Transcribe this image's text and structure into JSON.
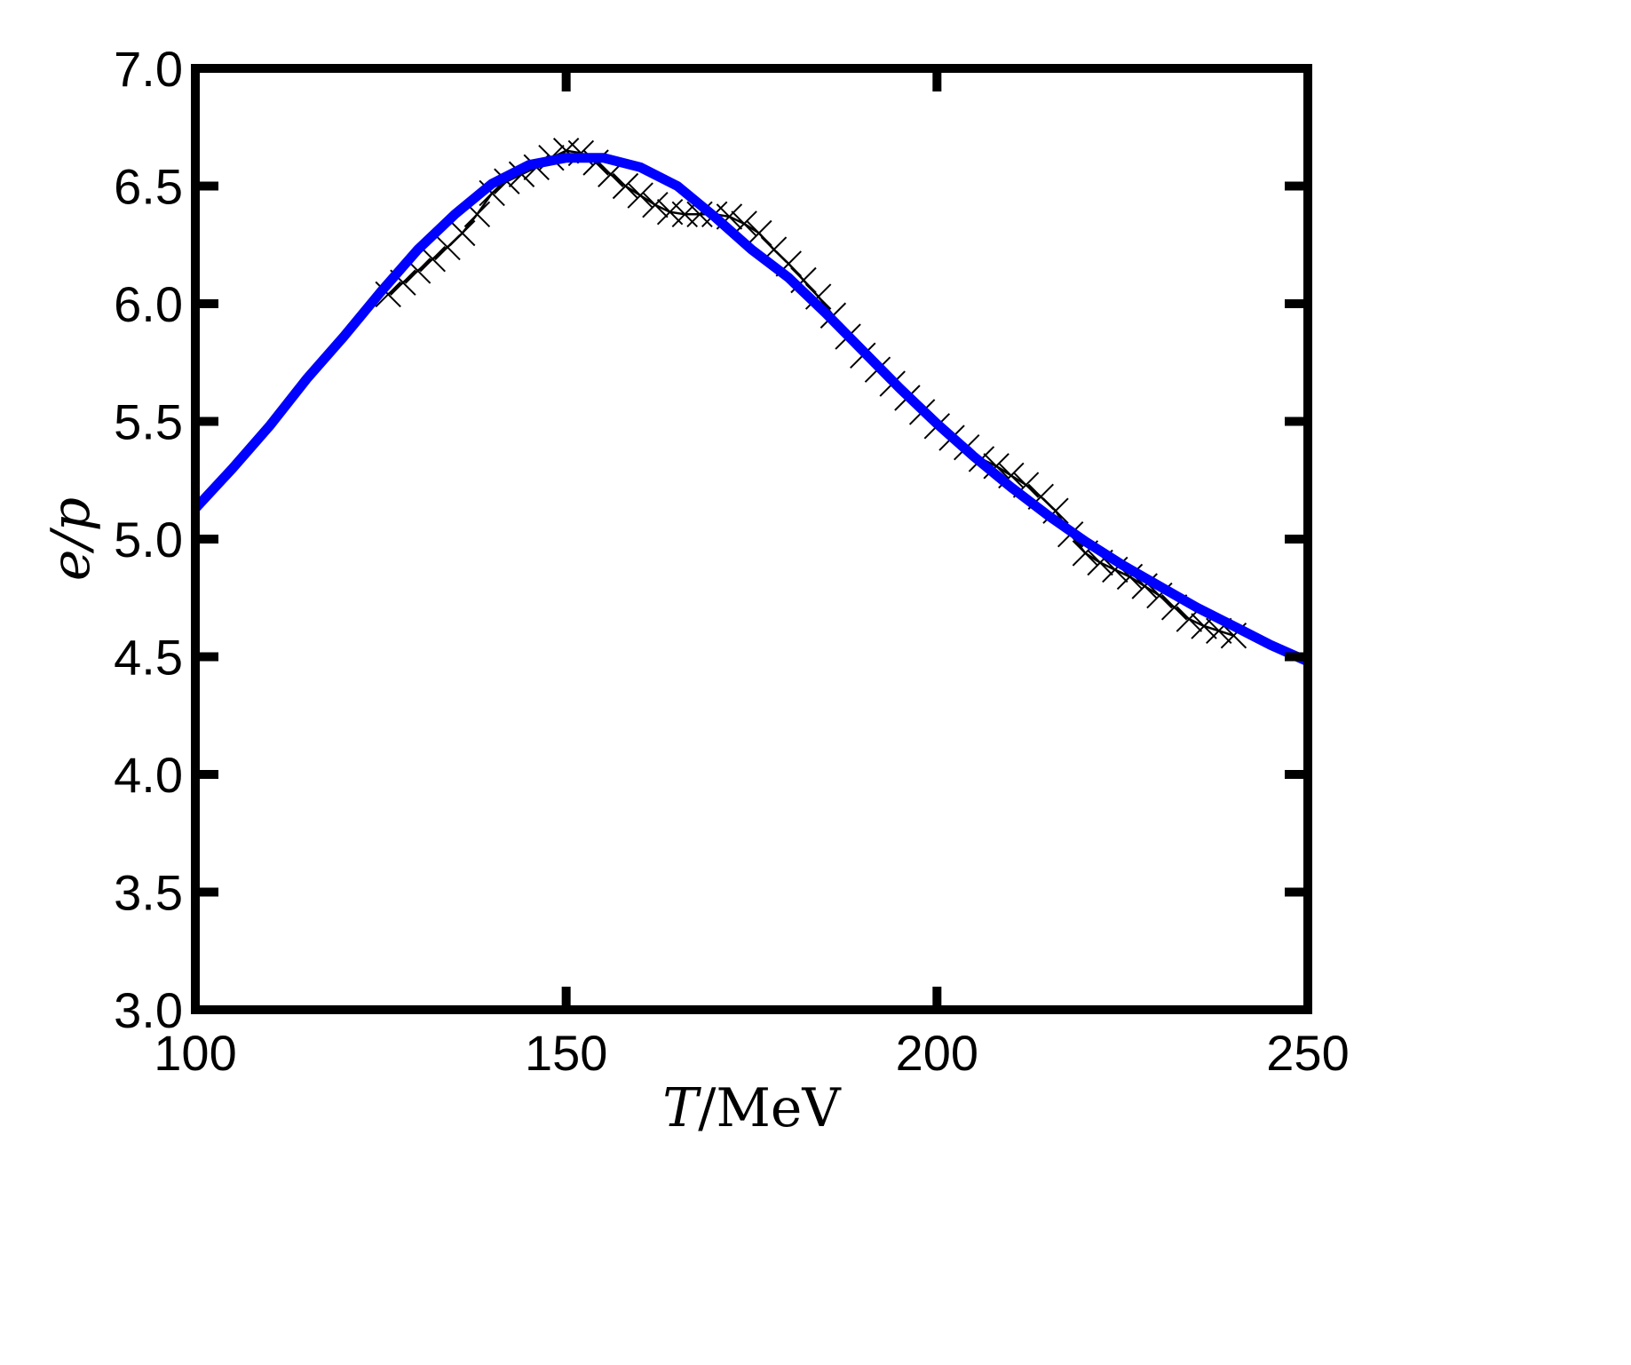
{
  "chart_data": {
    "type": "line",
    "xlabel": {
      "var": "T",
      "unit": "/MeV"
    },
    "ylabel": {
      "var": "e/p"
    },
    "xlim": [
      100,
      250
    ],
    "ylim": [
      3.0,
      7.0
    ],
    "x_ticks": [
      {
        "value": 100,
        "label": "100"
      },
      {
        "value": 150,
        "label": "150"
      },
      {
        "value": 200,
        "label": "200"
      },
      {
        "value": 250,
        "label": "250"
      }
    ],
    "y_ticks": [
      {
        "value": 3.0,
        "label": "3.0"
      },
      {
        "value": 3.5,
        "label": "3.5"
      },
      {
        "value": 4.0,
        "label": "4.0"
      },
      {
        "value": 4.5,
        "label": "4.5"
      },
      {
        "value": 5.0,
        "label": "5.0"
      },
      {
        "value": 5.5,
        "label": "5.5"
      },
      {
        "value": 6.0,
        "label": "6.0"
      },
      {
        "value": 6.5,
        "label": "6.5"
      },
      {
        "value": 7.0,
        "label": "7.0"
      }
    ],
    "grid": false,
    "legend": "none",
    "series": [
      {
        "style": "line",
        "color": "#0000ff",
        "x": [
          100,
          105,
          110,
          115,
          120,
          125,
          130,
          135,
          140,
          145,
          150,
          155,
          160,
          165,
          170,
          175,
          180,
          185,
          190,
          195,
          200,
          205,
          210,
          215,
          220,
          225,
          230,
          235,
          240,
          245,
          250
        ],
        "y": [
          5.13,
          5.3,
          5.48,
          5.68,
          5.86,
          6.05,
          6.23,
          6.38,
          6.51,
          6.59,
          6.62,
          6.62,
          6.58,
          6.5,
          6.37,
          6.23,
          6.11,
          5.96,
          5.8,
          5.64,
          5.49,
          5.35,
          5.22,
          5.1,
          4.99,
          4.89,
          4.8,
          4.71,
          4.63,
          4.55,
          4.48
        ]
      },
      {
        "style": "line-markers",
        "marker": "x",
        "color": "#000000",
        "x": [
          126,
          128,
          130,
          132,
          134,
          136,
          138,
          140,
          142,
          144,
          146,
          148,
          150,
          152,
          154,
          156,
          158,
          160,
          162,
          164,
          166,
          168,
          170,
          172,
          174,
          176,
          178,
          180,
          182,
          184,
          186,
          188,
          190,
          192,
          194,
          196,
          198,
          200,
          202,
          204,
          206,
          208,
          210,
          212,
          214,
          216,
          218,
          220,
          222,
          224,
          226,
          228,
          230,
          232,
          234,
          236,
          238,
          240
        ],
        "y": [
          6.04,
          6.09,
          6.14,
          6.19,
          6.24,
          6.3,
          6.38,
          6.47,
          6.52,
          6.55,
          6.58,
          6.62,
          6.65,
          6.64,
          6.6,
          6.55,
          6.5,
          6.46,
          6.42,
          6.39,
          6.38,
          6.38,
          6.38,
          6.37,
          6.34,
          6.3,
          6.23,
          6.17,
          6.1,
          6.03,
          5.95,
          5.86,
          5.78,
          5.72,
          5.66,
          5.6,
          5.54,
          5.48,
          5.43,
          5.39,
          5.34,
          5.31,
          5.27,
          5.23,
          5.18,
          5.12,
          5.02,
          4.94,
          4.9,
          4.87,
          4.84,
          4.8,
          4.76,
          4.71,
          4.66,
          4.63,
          4.61,
          4.59
        ]
      }
    ]
  }
}
